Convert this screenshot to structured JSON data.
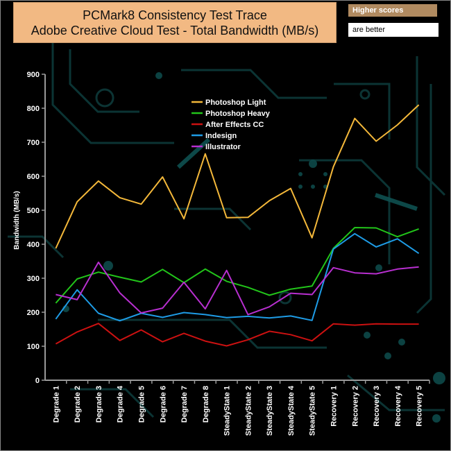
{
  "header": {
    "title_line1": "PCMark8 Consistency Test Trace",
    "title_line2": "Adobe Creative Cloud Test - Total Bandwidth (MB/s)",
    "badge_higher": "Higher scores",
    "badge_better": "are better"
  },
  "chart_data": {
    "type": "line",
    "title": "PCMark8 Consistency Test Trace - Adobe Creative Cloud Test - Total Bandwidth (MB/s)",
    "xlabel": "",
    "ylabel": "Bandwidth (MB/s)",
    "ylim": [
      0,
      900
    ],
    "yticks": [
      "0",
      "100",
      "200",
      "300",
      "400",
      "500",
      "600",
      "700",
      "800",
      "900"
    ],
    "legend_position": "top-center",
    "categories": [
      "Degrade 1",
      "Degrade 2",
      "Degrade 3",
      "Degrade 4",
      "Degrade 5",
      "Degrade 6",
      "Degrade 7",
      "Degrade 8",
      "SteadyState 1",
      "SteadyState 2",
      "SteadyState 3",
      "SteadyState 4",
      "SteadyState 5",
      "Recovery 1",
      "Recovery 2",
      "Recovery 3",
      "Recovery 4",
      "Recovery 5"
    ],
    "series": [
      {
        "name": "Photoshop Light",
        "color": "#F4B83A",
        "values": [
          388,
          525,
          586,
          537,
          518,
          598,
          475,
          666,
          478,
          479,
          528,
          564,
          419,
          628,
          770,
          703,
          751,
          810
        ]
      },
      {
        "name": "Photoshop Heavy",
        "color": "#22C51A",
        "values": [
          227,
          298,
          318,
          303,
          289,
          326,
          287,
          327,
          291,
          273,
          250,
          268,
          277,
          388,
          449,
          448,
          422,
          445
        ]
      },
      {
        "name": "After Effects CC",
        "color": "#CC1111",
        "values": [
          107,
          142,
          167,
          117,
          148,
          113,
          138,
          115,
          101,
          119,
          144,
          134,
          116,
          166,
          162,
          166,
          165,
          165
        ]
      },
      {
        "name": "Indesign",
        "color": "#1E9CE6",
        "values": [
          180,
          266,
          197,
          175,
          197,
          185,
          199,
          193,
          184,
          188,
          183,
          189,
          176,
          386,
          431,
          392,
          416,
          373
        ]
      },
      {
        "name": "Illustrator",
        "color": "#B82FD0",
        "values": [
          252,
          237,
          347,
          257,
          198,
          212,
          288,
          210,
          323,
          193,
          216,
          256,
          252,
          331,
          316,
          313,
          327,
          333
        ]
      }
    ]
  }
}
